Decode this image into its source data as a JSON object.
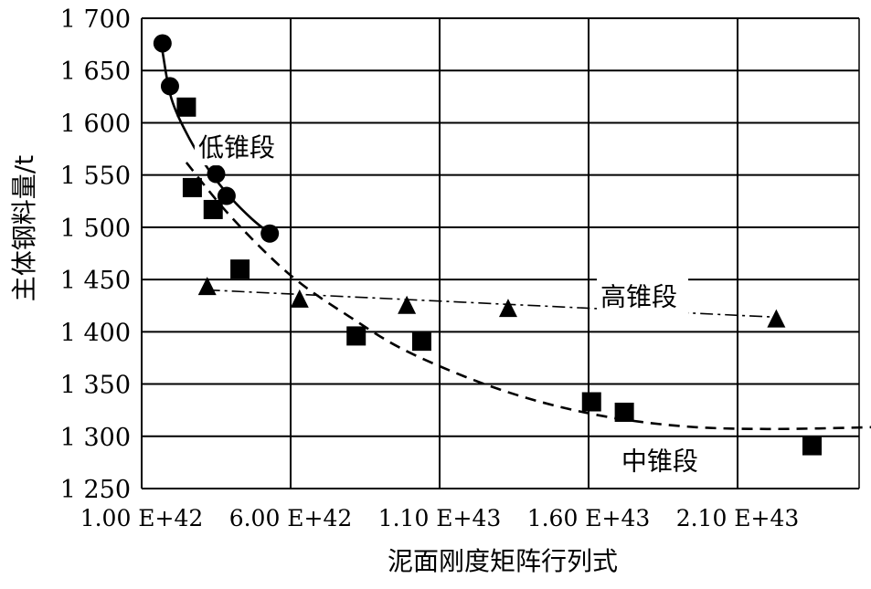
{
  "chart_data": {
    "type": "scatter",
    "xlabel": "泥面刚度矩阵行列式",
    "ylabel": "主体钢料量/t",
    "xlim": [
      1e+42,
      2.6e+43
    ],
    "ylim": [
      1250,
      1700
    ],
    "grid": true,
    "x_ticks": [
      1e+42,
      6e+42,
      1.1e+43,
      1.6e+43,
      2.1e+43
    ],
    "x_tick_labels": [
      "1.00 E+42",
      "6.00 E+42",
      "1.10 E+43",
      "1.60 E+43",
      "2.10 E+43"
    ],
    "y_ticks": [
      1250,
      1300,
      1350,
      1400,
      1450,
      1500,
      1550,
      1600,
      1650,
      1700
    ],
    "y_tick_labels": [
      "1 250",
      "1 300",
      "1 350",
      "1 400",
      "1 450",
      "1 500",
      "1 550",
      "1 600",
      "1 650",
      "1 700"
    ],
    "series": [
      {
        "marker": "circle",
        "x": [
          1.7e+42,
          1.95e+42,
          3.5e+42,
          3.85e+42,
          5.3e+42
        ],
        "y": [
          1676,
          1635,
          1551,
          1530,
          1494
        ],
        "trend": {
          "style": "solid",
          "x": [
            1.7e+42,
            2e+42,
            2.6e+42,
            3.3e+42,
            4e+42,
            4.7e+42,
            5.3e+42
          ],
          "y": [
            1668,
            1623,
            1585,
            1553,
            1528,
            1508,
            1494
          ]
        }
      },
      {
        "marker": "square",
        "x": [
          2.5e+42,
          2.7e+42,
          3.4e+42,
          4.3e+42,
          8.2e+42,
          1.04e+43,
          1.61e+43,
          1.72e+43,
          2.35e+43
        ],
        "y": [
          1615,
          1538,
          1517,
          1460,
          1396,
          1391,
          1333,
          1323,
          1291
        ],
        "trend": {
          "style": "dashed",
          "x": [
            2.5e+42,
            4e+42,
            6e+42,
            8e+42,
            1e+43,
            1.3e+43,
            1.6e+43,
            1.9e+43,
            2.2e+43,
            2.6e+43
          ],
          "y": [
            1562,
            1510,
            1454,
            1414,
            1380,
            1345,
            1322,
            1310,
            1307,
            1309
          ]
        }
      },
      {
        "marker": "triangle",
        "x": [
          3.2e+42,
          6.3e+42,
          9.9e+42,
          1.33e+43,
          2.23e+43
        ],
        "y": [
          1443,
          1431,
          1425,
          1422,
          1412
        ],
        "trend": {
          "style": "dashdot",
          "x": [
            3.2e+42,
            2.23e+43
          ],
          "y": [
            1440,
            1414
          ]
        }
      }
    ],
    "annotations": [
      {
        "text": "低锥段",
        "x": 2.9e+42,
        "y": 1568
      },
      {
        "text": "高锥段",
        "x": 1.64e+43,
        "y": 1425
      },
      {
        "text": "中锥段",
        "x": 1.71e+43,
        "y": 1268
      }
    ]
  }
}
